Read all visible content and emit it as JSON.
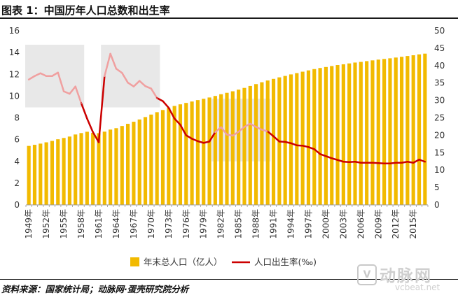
{
  "page": {
    "title": "图表 1：中国历年人口总数和出生率",
    "source": "资料来源：国家统计局；动脉网·蛋壳研究院分析",
    "watermark": {
      "badge": "V",
      "name": "动脉网",
      "url": "vcbeat.net"
    }
  },
  "colors": {
    "bar": "#F2BA00",
    "line": "#CC0000",
    "highlight": "#E8E8E8",
    "line_faded": "#F0A0A0"
  },
  "chart_data": {
    "type": "bar+line",
    "title": "",
    "x": [
      1949,
      1950,
      1951,
      1952,
      1953,
      1954,
      1955,
      1956,
      1957,
      1958,
      1959,
      1960,
      1961,
      1962,
      1963,
      1964,
      1965,
      1966,
      1967,
      1968,
      1969,
      1970,
      1971,
      1972,
      1973,
      1974,
      1975,
      1976,
      1977,
      1978,
      1979,
      1980,
      1981,
      1982,
      1983,
      1984,
      1985,
      1986,
      1987,
      1988,
      1989,
      1990,
      1991,
      1992,
      1993,
      1994,
      1995,
      1996,
      1997,
      1998,
      1999,
      2000,
      2001,
      2002,
      2003,
      2004,
      2005,
      2006,
      2007,
      2008,
      2009,
      2010,
      2011,
      2012,
      2013,
      2014,
      2015,
      2016,
      2017
    ],
    "x_tick_labels": [
      "1949年",
      "1952年",
      "1955年",
      "1958年",
      "1961年",
      "1964年",
      "1967年",
      "1970年",
      "1973年",
      "1976年",
      "1979年",
      "1982年",
      "1985年",
      "1988年",
      "1991年",
      "1994年",
      "1997年",
      "2000年",
      "2003年",
      "2006年",
      "2009年",
      "2012年",
      "2015年"
    ],
    "series": [
      {
        "name": "年末总人口（亿人）",
        "type": "bar",
        "axis": "left",
        "values": [
          5.42,
          5.52,
          5.63,
          5.75,
          5.88,
          6.03,
          6.15,
          6.28,
          6.47,
          6.6,
          6.72,
          6.62,
          6.59,
          6.73,
          6.92,
          7.05,
          7.25,
          7.45,
          7.64,
          7.85,
          8.07,
          8.3,
          8.52,
          8.72,
          8.92,
          9.09,
          9.24,
          9.37,
          9.5,
          9.63,
          9.75,
          9.87,
          10.01,
          10.17,
          10.3,
          10.44,
          10.59,
          10.75,
          10.93,
          11.1,
          11.27,
          11.43,
          11.58,
          11.72,
          11.85,
          11.99,
          12.11,
          12.24,
          12.36,
          12.48,
          12.58,
          12.67,
          12.76,
          12.85,
          12.92,
          13.0,
          13.08,
          13.14,
          13.21,
          13.28,
          13.35,
          13.41,
          13.47,
          13.54,
          13.61,
          13.68,
          13.75,
          13.83,
          13.9
        ]
      },
      {
        "name": "人口出生率(‰)",
        "type": "line",
        "axis": "right",
        "values": [
          36.0,
          37.0,
          37.8,
          37.0,
          37.0,
          38.0,
          32.6,
          31.9,
          34.0,
          29.2,
          24.8,
          20.9,
          18.0,
          37.0,
          43.4,
          39.1,
          37.9,
          35.1,
          34.0,
          35.6,
          34.1,
          33.4,
          30.7,
          29.8,
          27.9,
          24.8,
          23.0,
          20.0,
          19.0,
          18.3,
          17.8,
          18.2,
          20.9,
          22.3,
          20.2,
          19.9,
          21.0,
          22.4,
          23.3,
          22.4,
          21.6,
          21.1,
          19.7,
          18.2,
          18.1,
          17.7,
          17.1,
          17.0,
          16.6,
          16.0,
          14.6,
          14.0,
          13.4,
          12.9,
          12.4,
          12.3,
          12.4,
          12.1,
          12.1,
          12.1,
          12.0,
          11.9,
          11.9,
          12.1,
          12.1,
          12.4,
          12.1,
          13.0,
          12.4
        ]
      }
    ],
    "y_left": {
      "min": 0,
      "max": 16,
      "ticks": [
        "0",
        "2",
        "4",
        "6",
        "8",
        "10",
        "12",
        "14",
        "16"
      ]
    },
    "y_right": {
      "min": 0,
      "max": 50,
      "ticks": [
        "0",
        "5",
        "10",
        "15",
        "20",
        "25",
        "30",
        "35",
        "40",
        "45",
        "50"
      ]
    },
    "highlight_ranges": [
      {
        "from": 1949,
        "to": 1958,
        "y_right_from": 28,
        "y_right_to": 46
      },
      {
        "from": 1962,
        "to": 1971,
        "y_right_from": 28,
        "y_right_to": 46
      },
      {
        "from": 1981,
        "to": 1990,
        "y_right_from": 12.5,
        "y_right_to": 30.5
      }
    ],
    "legend": {
      "position": "bottom",
      "items": [
        "年末总人口（亿人）",
        "人口出生率(‰)"
      ]
    },
    "grid": false
  }
}
